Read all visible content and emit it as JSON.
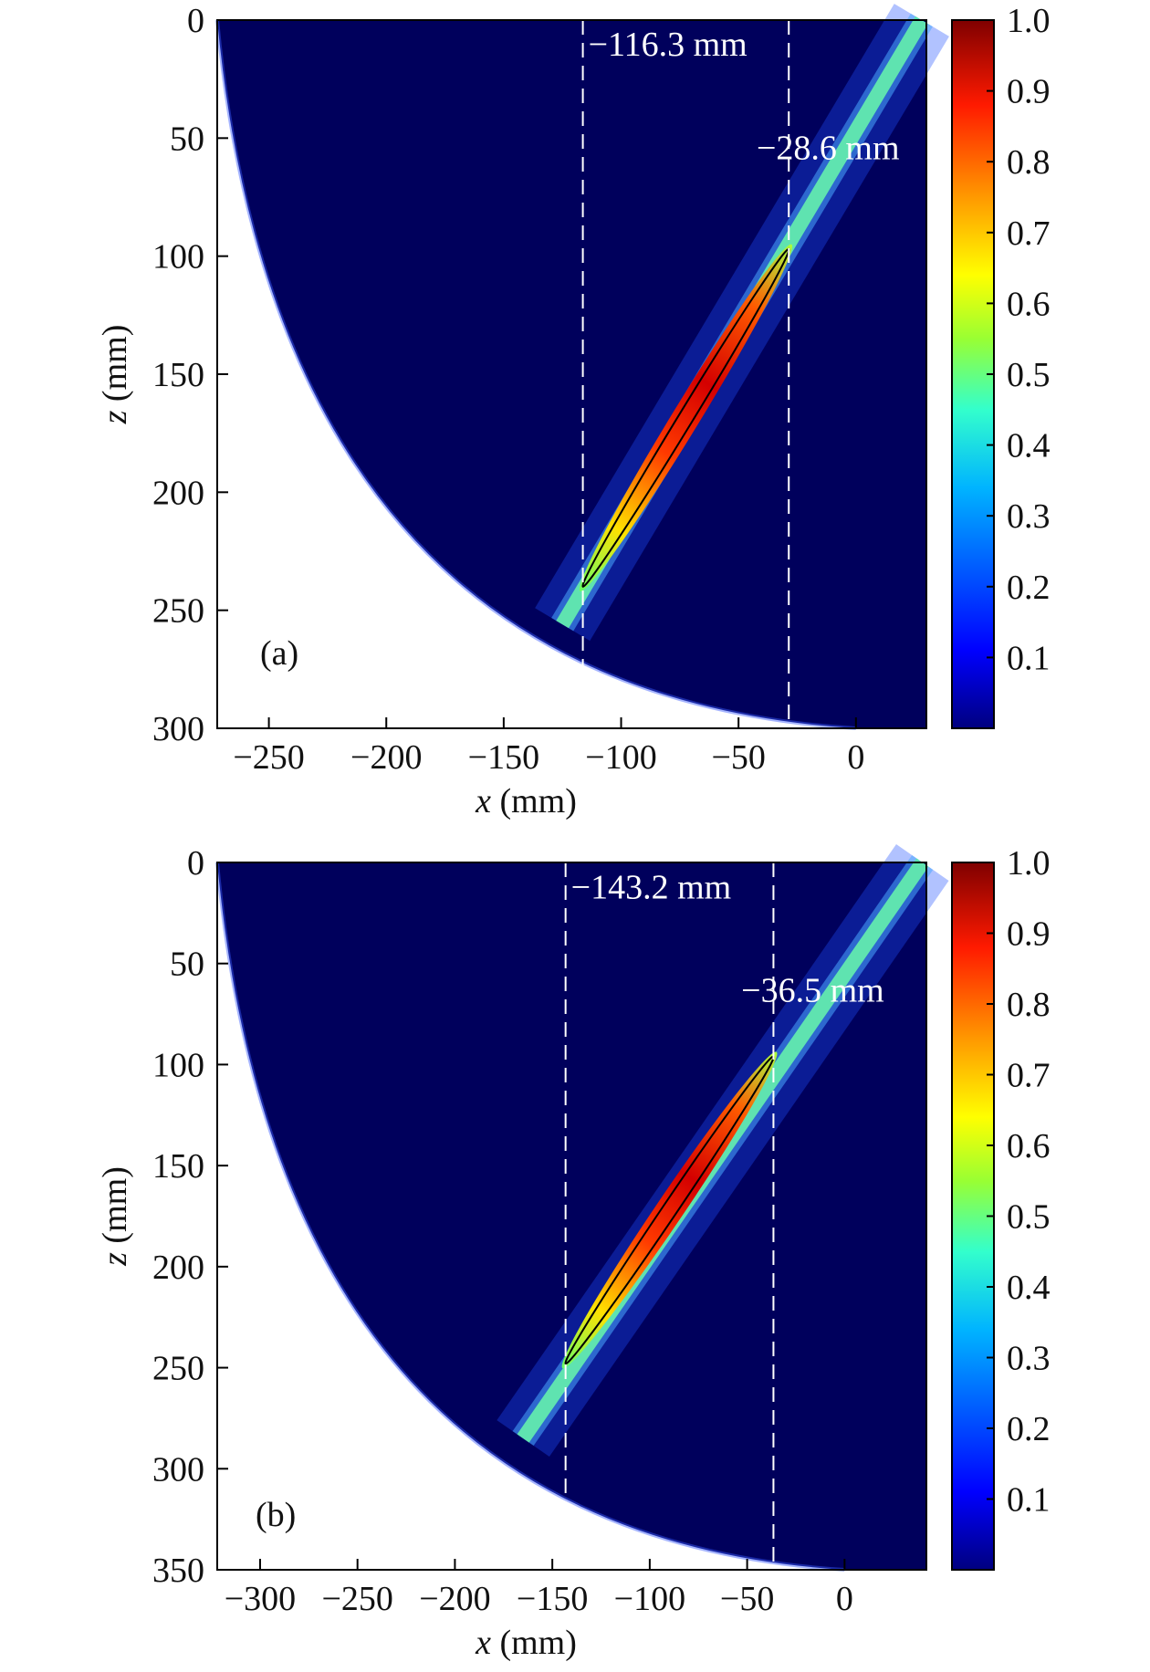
{
  "chart_data": [
    {
      "type": "heatmap",
      "panel_label": "(a)",
      "xlabel": {
        "var": "x",
        "unit": " (mm)"
      },
      "ylabel": {
        "var": "z",
        "unit": " (mm)"
      },
      "xlim": [
        -272,
        30
      ],
      "ylim": [
        300,
        0
      ],
      "xticks": [
        -250,
        -200,
        -150,
        -100,
        -50,
        0
      ],
      "xtick_labels": [
        "−250",
        "−200",
        "−150",
        "−100",
        "−50",
        "0"
      ],
      "yticks": [
        0,
        50,
        100,
        150,
        200,
        250,
        300
      ],
      "ytick_labels": [
        "0",
        "50",
        "100",
        "150",
        "200",
        "250",
        "300"
      ],
      "colorbar": {
        "range": [
          0,
          1
        ],
        "ticks": [
          1.0,
          0.9,
          0.8,
          0.7,
          0.6,
          0.5,
          0.4,
          0.3,
          0.2,
          0.1
        ],
        "tick_labels": [
          "1.0",
          "0.9",
          "0.8",
          "0.7",
          "0.6",
          "0.5",
          "0.4",
          "0.3",
          "0.2",
          "0.1"
        ]
      },
      "beam": {
        "x_start": -125,
        "z_start": 256,
        "x_end": 28,
        "z_end": 0
      },
      "focal_zone": {
        "x_start": -116.3,
        "z_start": 240,
        "x_end": -28.6,
        "z_end": 97
      },
      "boundary": {
        "x_left_top": -272,
        "x_bottom": 0,
        "z_bottom": 300
      },
      "markers": [
        {
          "x": -116.3,
          "label": "−116.3 mm",
          "label_z": 10
        },
        {
          "x": -28.6,
          "label": "−28.6 mm",
          "label_z": 54
        }
      ]
    },
    {
      "type": "heatmap",
      "panel_label": "(b)",
      "xlabel": {
        "var": "x",
        "unit": " (mm)"
      },
      "ylabel": {
        "var": "z",
        "unit": " (mm)"
      },
      "xlim": [
        -322,
        42
      ],
      "ylim": [
        350,
        0
      ],
      "xticks": [
        -300,
        -250,
        -200,
        -150,
        -100,
        -50,
        0
      ],
      "xtick_labels": [
        "−300",
        "−250",
        "−200",
        "−150",
        "−100",
        "−50",
        "0"
      ],
      "yticks": [
        0,
        50,
        100,
        150,
        200,
        250,
        300,
        350
      ],
      "ytick_labels": [
        "0",
        "50",
        "100",
        "150",
        "200",
        "250",
        "300",
        "350"
      ],
      "colorbar": {
        "range": [
          0,
          1
        ],
        "ticks": [
          1.0,
          0.9,
          0.8,
          0.7,
          0.6,
          0.5,
          0.4,
          0.3,
          0.2,
          0.1
        ],
        "tick_labels": [
          "1.0",
          "0.9",
          "0.8",
          "0.7",
          "0.6",
          "0.5",
          "0.4",
          "0.3",
          "0.2",
          "0.1"
        ]
      },
      "beam": {
        "x_start": -165,
        "z_start": 285,
        "x_end": 40,
        "z_end": 0
      },
      "focal_zone": {
        "x_start": -143.2,
        "z_start": 248,
        "x_end": -36.5,
        "z_end": 96
      },
      "boundary": {
        "x_left_top": -322,
        "x_bottom": 0,
        "z_bottom": 350
      },
      "markers": [
        {
          "x": -143.2,
          "label": "−143.2 mm",
          "label_z": 12
        },
        {
          "x": -36.5,
          "label": "−36.5 mm",
          "label_z": 63
        }
      ]
    }
  ],
  "colors": {
    "background": "#ffffff",
    "field_low": "#00005c",
    "jet": [
      "#00007f",
      "#0000ff",
      "#007fff",
      "#00ffff",
      "#7fff7f",
      "#ffff00",
      "#ff7f00",
      "#ff0000",
      "#7f0000"
    ],
    "marker_line": "#ffffff",
    "contour": "#000000"
  }
}
